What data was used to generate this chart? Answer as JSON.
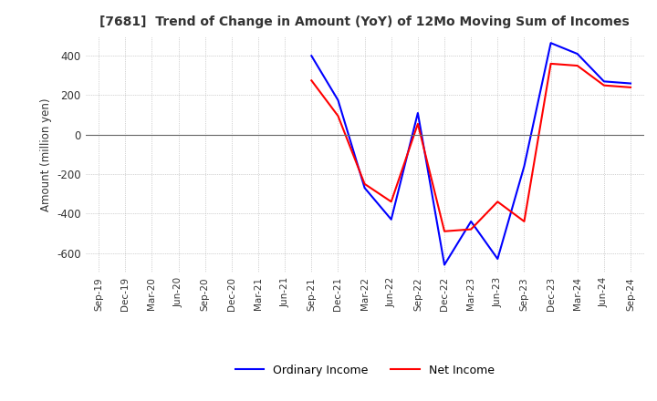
{
  "title": "[7681]  Trend of Change in Amount (YoY) of 12Mo Moving Sum of Incomes",
  "ylabel": "Amount (million yen)",
  "x_labels": [
    "Sep-19",
    "Dec-19",
    "Mar-20",
    "Jun-20",
    "Sep-20",
    "Dec-20",
    "Mar-21",
    "Jun-21",
    "Sep-21",
    "Dec-21",
    "Mar-22",
    "Jun-22",
    "Sep-22",
    "Dec-22",
    "Mar-23",
    "Jun-23",
    "Sep-23",
    "Dec-23",
    "Mar-24",
    "Jun-24",
    "Sep-24"
  ],
  "ordinary_income": [
    null,
    null,
    null,
    null,
    null,
    null,
    null,
    null,
    400,
    175,
    -270,
    -430,
    110,
    -660,
    -440,
    -630,
    -160,
    465,
    410,
    270,
    260
  ],
  "net_income": [
    null,
    null,
    null,
    null,
    null,
    null,
    null,
    null,
    275,
    95,
    -250,
    -340,
    55,
    -490,
    -480,
    -340,
    -440,
    360,
    350,
    250,
    240
  ],
  "ordinary_color": "#0000ff",
  "net_color": "#ff0000",
  "ylim": [
    -700,
    500
  ],
  "yticks": [
    400,
    200,
    0,
    -200,
    -400,
    -600
  ],
  "background_color": "#ffffff",
  "grid_color": "#aaaaaa",
  "legend_labels": [
    "Ordinary Income",
    "Net Income"
  ]
}
